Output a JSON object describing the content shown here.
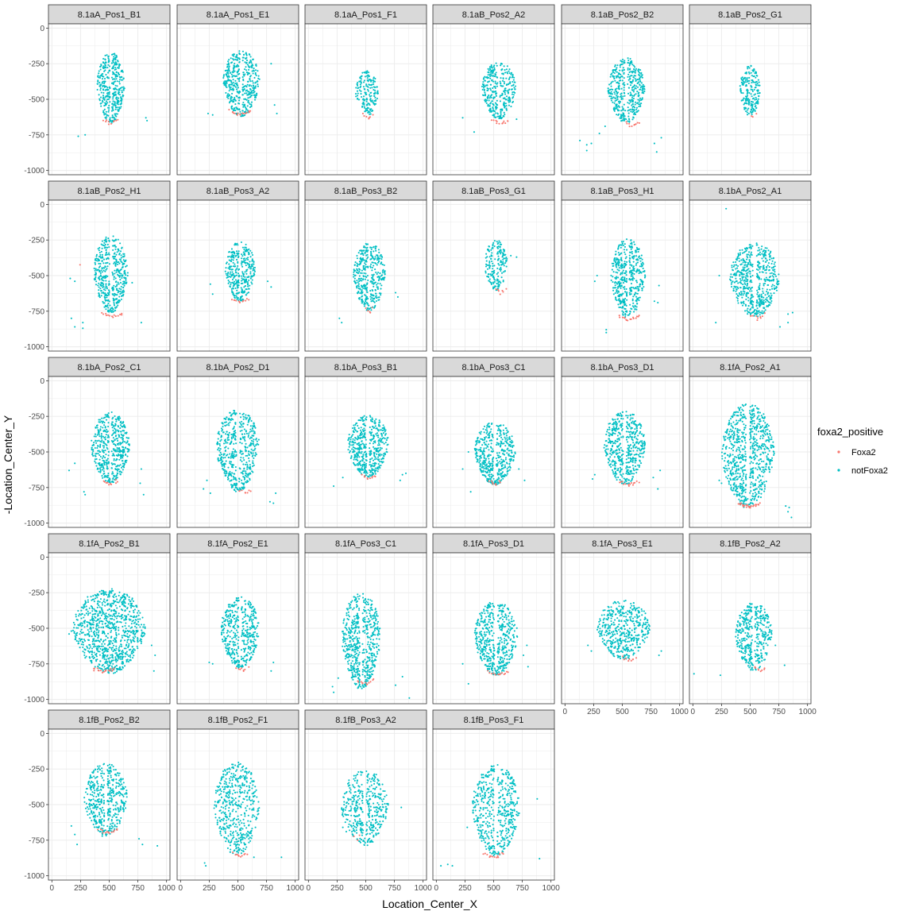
{
  "chart_data": {
    "type": "scatter",
    "facet_labels": [
      "8.1aA_Pos1_B1",
      "8.1aA_Pos1_E1",
      "8.1aA_Pos1_F1",
      "8.1aB_Pos2_A2",
      "8.1aB_Pos2_B2",
      "8.1aB_Pos2_G1",
      "8.1aB_Pos2_H1",
      "8.1aB_Pos3_A2",
      "8.1aB_Pos3_B2",
      "8.1aB_Pos3_G1",
      "8.1aB_Pos3_H1",
      "8.1bA_Pos2_A1",
      "8.1bA_Pos2_C1",
      "8.1bA_Pos2_D1",
      "8.1bA_Pos3_B1",
      "8.1bA_Pos3_C1",
      "8.1bA_Pos3_D1",
      "8.1fA_Pos2_A1",
      "8.1fA_Pos2_B1",
      "8.1fA_Pos2_E1",
      "8.1fA_Pos3_C1",
      "8.1fA_Pos3_D1",
      "8.1fA_Pos3_E1",
      "8.1fB_Pos2_A2",
      "8.1fB_Pos2_B2",
      "8.1fB_Pos2_F1",
      "8.1fB_Pos3_A2",
      "8.1fB_Pos3_F1"
    ],
    "xlabel": "Location_Center_X",
    "ylabel": "-Location_Center_Y",
    "xlim": [
      -30,
      1030
    ],
    "ylim": [
      -1030,
      30
    ],
    "x_ticks": [
      0,
      250,
      500,
      750,
      1000
    ],
    "x_tick_labels": [
      "0",
      "250",
      "500",
      "750",
      "1000"
    ],
    "y_ticks": [
      0,
      -250,
      -500,
      -750,
      -1000
    ],
    "y_tick_labels": [
      "0",
      "-250",
      "-500",
      "-750",
      "-1000"
    ],
    "grid": true,
    "legend": {
      "title": "foxa2_positive",
      "position": "right",
      "entries": [
        {
          "label": "Foxa2",
          "color": "#F8766D"
        },
        {
          "label": "notFoxa2",
          "color": "#00BFC4"
        }
      ]
    },
    "facets": [
      {
        "cx": 515,
        "cy": -420,
        "rx": 120,
        "ry": 250,
        "n": 380,
        "groove": true,
        "foxa2": [
          {
            "x": 510,
            "y": -660,
            "n": 10
          }
        ],
        "strays": [
          [
            230,
            -760
          ],
          [
            290,
            -750
          ],
          [
            830,
            -650
          ],
          [
            820,
            -630
          ],
          [
            550,
            -190
          ]
        ]
      },
      {
        "cx": 530,
        "cy": -390,
        "rx": 160,
        "ry": 230,
        "n": 420,
        "groove": true,
        "foxa2": [
          {
            "x": 520,
            "y": -600,
            "n": 16
          }
        ],
        "strays": [
          [
            240,
            -600
          ],
          [
            280,
            -610
          ],
          [
            820,
            -540
          ],
          [
            840,
            -600
          ],
          [
            790,
            -250
          ]
        ]
      },
      {
        "cx": 510,
        "cy": -460,
        "rx": 100,
        "ry": 160,
        "n": 170,
        "groove": false,
        "foxa2": [
          {
            "x": 520,
            "y": -620,
            "n": 7
          }
        ],
        "strays": []
      },
      {
        "cx": 545,
        "cy": -440,
        "rx": 150,
        "ry": 200,
        "n": 330,
        "groove": true,
        "foxa2": [
          {
            "x": 560,
            "y": -660,
            "n": 12
          }
        ],
        "strays": [
          [
            230,
            -630
          ],
          [
            330,
            -730
          ],
          [
            700,
            -640
          ]
        ]
      },
      {
        "cx": 535,
        "cy": -440,
        "rx": 160,
        "ry": 230,
        "n": 400,
        "groove": true,
        "foxa2": [
          {
            "x": 590,
            "y": -680,
            "n": 10
          }
        ],
        "strays": [
          [
            130,
            -790
          ],
          [
            190,
            -860
          ],
          [
            230,
            -810
          ],
          [
            190,
            -820
          ],
          [
            780,
            -810
          ],
          [
            800,
            -870
          ],
          [
            840,
            -770
          ],
          [
            300,
            -740
          ],
          [
            350,
            -690
          ]
        ]
      },
      {
        "cx": 500,
        "cy": -440,
        "rx": 90,
        "ry": 180,
        "n": 200,
        "groove": true,
        "foxa2": [
          {
            "x": 530,
            "y": -620,
            "n": 3
          }
        ],
        "strays": []
      },
      {
        "cx": 515,
        "cy": -490,
        "rx": 150,
        "ry": 270,
        "n": 430,
        "groove": true,
        "foxa2": [
          {
            "x": 530,
            "y": -780,
            "n": 14
          },
          {
            "x": 240,
            "y": -420,
            "n": 1
          }
        ],
        "strays": [
          [
            160,
            -520
          ],
          [
            200,
            -540
          ],
          [
            170,
            -800
          ],
          [
            200,
            -860
          ],
          [
            270,
            -830
          ],
          [
            270,
            -870
          ],
          [
            780,
            -830
          ],
          [
            700,
            -550
          ]
        ]
      },
      {
        "cx": 520,
        "cy": -470,
        "rx": 130,
        "ry": 210,
        "n": 330,
        "groove": true,
        "foxa2": [
          {
            "x": 520,
            "y": -680,
            "n": 12
          }
        ],
        "strays": [
          [
            260,
            -560
          ],
          [
            280,
            -630
          ],
          [
            790,
            -580
          ],
          [
            760,
            -540
          ]
        ]
      },
      {
        "cx": 530,
        "cy": -510,
        "rx": 140,
        "ry": 240,
        "n": 380,
        "groove": true,
        "foxa2": [
          {
            "x": 530,
            "y": -750,
            "n": 5
          }
        ],
        "strays": [
          [
            270,
            -800
          ],
          [
            290,
            -830
          ],
          [
            760,
            -620
          ],
          [
            780,
            -650
          ]
        ]
      },
      {
        "cx": 520,
        "cy": -430,
        "rx": 100,
        "ry": 180,
        "n": 180,
        "groove": true,
        "foxa2": [
          {
            "x": 560,
            "y": -610,
            "n": 7
          }
        ],
        "strays": [
          [
            700,
            -370
          ],
          [
            650,
            -360
          ]
        ]
      },
      {
        "cx": 550,
        "cy": -520,
        "rx": 150,
        "ry": 280,
        "n": 430,
        "groove": true,
        "foxa2": [
          {
            "x": 560,
            "y": -800,
            "n": 16
          }
        ],
        "strays": [
          [
            260,
            -540
          ],
          [
            280,
            -500
          ],
          [
            360,
            -880
          ],
          [
            360,
            -900
          ],
          [
            780,
            -680
          ],
          [
            810,
            -690
          ],
          [
            820,
            -570
          ]
        ]
      },
      {
        "cx": 540,
        "cy": -530,
        "rx": 220,
        "ry": 260,
        "n": 560,
        "groove": true,
        "foxa2": [
          {
            "x": 560,
            "y": -790,
            "n": 10
          }
        ],
        "strays": [
          [
            290,
            -30
          ],
          [
            200,
            -830
          ],
          [
            760,
            -860
          ],
          [
            830,
            -830
          ],
          [
            870,
            -760
          ],
          [
            830,
            -770
          ],
          [
            230,
            -500
          ]
        ]
      },
      {
        "cx": 510,
        "cy": -470,
        "rx": 170,
        "ry": 250,
        "n": 470,
        "groove": true,
        "foxa2": [
          {
            "x": 510,
            "y": -720,
            "n": 10
          }
        ],
        "strays": [
          [
            150,
            -630
          ],
          [
            200,
            -580
          ],
          [
            280,
            -780
          ],
          [
            290,
            -800
          ],
          [
            770,
            -720
          ],
          [
            800,
            -800
          ],
          [
            780,
            -620
          ]
        ]
      },
      {
        "cx": 500,
        "cy": -490,
        "rx": 190,
        "ry": 290,
        "n": 480,
        "groove": true,
        "foxa2": [
          {
            "x": 560,
            "y": -780,
            "n": 8
          }
        ],
        "strays": [
          [
            200,
            -760
          ],
          [
            260,
            -790
          ],
          [
            810,
            -860
          ],
          [
            780,
            -850
          ],
          [
            830,
            -790
          ],
          [
            230,
            -700
          ]
        ]
      },
      {
        "cx": 520,
        "cy": -460,
        "rx": 180,
        "ry": 220,
        "n": 460,
        "groove": true,
        "foxa2": [
          {
            "x": 530,
            "y": -680,
            "n": 10
          }
        ],
        "strays": [
          [
            220,
            -740
          ],
          [
            300,
            -680
          ],
          [
            820,
            -660
          ],
          [
            850,
            -650
          ],
          [
            800,
            -700
          ]
        ]
      },
      {
        "cx": 510,
        "cy": -510,
        "rx": 180,
        "ry": 220,
        "n": 430,
        "groove": true,
        "foxa2": [
          {
            "x": 510,
            "y": -720,
            "n": 8
          }
        ],
        "strays": [
          [
            230,
            -620
          ],
          [
            300,
            -780
          ],
          [
            770,
            -700
          ],
          [
            720,
            -620
          ],
          [
            280,
            -500
          ]
        ]
      },
      {
        "cx": 520,
        "cy": -470,
        "rx": 180,
        "ry": 260,
        "n": 480,
        "groove": true,
        "foxa2": [
          {
            "x": 560,
            "y": -720,
            "n": 14
          }
        ],
        "strays": [
          [
            240,
            -690
          ],
          [
            260,
            -660
          ],
          [
            810,
            -760
          ],
          [
            770,
            -680
          ],
          [
            830,
            -630
          ]
        ]
      },
      {
        "cx": 480,
        "cy": -530,
        "rx": 230,
        "ry": 370,
        "n": 720,
        "groove": true,
        "foxa2": [
          {
            "x": 490,
            "y": -880,
            "n": 24
          }
        ],
        "strays": [
          [
            230,
            -700
          ],
          [
            250,
            -720
          ],
          [
            830,
            -920
          ],
          [
            860,
            -960
          ],
          [
            840,
            -890
          ],
          [
            810,
            -880
          ]
        ]
      },
      {
        "cx": 500,
        "cy": -520,
        "rx": 320,
        "ry": 300,
        "n": 900,
        "groove": false,
        "foxa2": [
          {
            "x": 450,
            "y": -800,
            "n": 18
          }
        ],
        "strays": [
          [
            150,
            -540
          ],
          [
            170,
            -520
          ],
          [
            890,
            -800
          ],
          [
            900,
            -690
          ],
          [
            870,
            -620
          ]
        ]
      },
      {
        "cx": 520,
        "cy": -530,
        "rx": 170,
        "ry": 250,
        "n": 420,
        "groove": true,
        "foxa2": [
          {
            "x": 540,
            "y": -790,
            "n": 8
          }
        ],
        "strays": [
          [
            250,
            -740
          ],
          [
            280,
            -750
          ],
          [
            810,
            -740
          ],
          [
            790,
            -800
          ]
        ]
      },
      {
        "cx": 460,
        "cy": -590,
        "rx": 170,
        "ry": 340,
        "n": 560,
        "groove": true,
        "foxa2": [
          {
            "x": 500,
            "y": -880,
            "n": 12
          }
        ],
        "strays": [
          [
            210,
            -910
          ],
          [
            220,
            -950
          ],
          [
            260,
            -850
          ],
          [
            880,
            -990
          ],
          [
            760,
            -900
          ],
          [
            820,
            -840
          ]
        ]
      },
      {
        "cx": 520,
        "cy": -570,
        "rx": 190,
        "ry": 260,
        "n": 480,
        "groove": true,
        "foxa2": [
          {
            "x": 540,
            "y": -820,
            "n": 14
          }
        ],
        "strays": [
          [
            230,
            -750
          ],
          [
            280,
            -890
          ],
          [
            760,
            -690
          ],
          [
            790,
            -620
          ],
          [
            800,
            -770
          ]
        ]
      },
      {
        "cx": 510,
        "cy": -510,
        "rx": 230,
        "ry": 210,
        "n": 450,
        "groove": false,
        "foxa2": [
          {
            "x": 560,
            "y": -720,
            "n": 9
          }
        ],
        "strays": [
          [
            200,
            -620
          ],
          [
            230,
            -660
          ],
          [
            840,
            -660
          ],
          [
            820,
            -690
          ]
        ]
      },
      {
        "cx": 530,
        "cy": -560,
        "rx": 160,
        "ry": 240,
        "n": 390,
        "groove": true,
        "foxa2": [
          {
            "x": 580,
            "y": -790,
            "n": 8
          }
        ],
        "strays": [
          [
            10,
            -820
          ],
          [
            240,
            -830
          ],
          [
            800,
            -760
          ],
          [
            720,
            -620
          ]
        ]
      },
      {
        "cx": 470,
        "cy": -470,
        "rx": 190,
        "ry": 260,
        "n": 430,
        "groove": true,
        "foxa2": [
          {
            "x": 490,
            "y": -690,
            "n": 14
          }
        ],
        "strays": [
          [
            200,
            -710
          ],
          [
            220,
            -780
          ],
          [
            920,
            -790
          ],
          [
            790,
            -780
          ],
          [
            760,
            -740
          ],
          [
            170,
            -650
          ]
        ]
      },
      {
        "cx": 490,
        "cy": -530,
        "rx": 200,
        "ry": 330,
        "n": 470,
        "groove": false,
        "foxa2": [
          {
            "x": 520,
            "y": -860,
            "n": 10
          }
        ],
        "strays": [
          [
            210,
            -910
          ],
          [
            220,
            -930
          ],
          [
            880,
            -870
          ],
          [
            640,
            -870
          ]
        ]
      },
      {
        "cx": 490,
        "cy": -520,
        "rx": 210,
        "ry": 270,
        "n": 400,
        "groove": true,
        "foxa2": [
          {
            "x": 420,
            "y": -740,
            "n": 3
          }
        ],
        "strays": [
          [
            300,
            -660
          ],
          [
            330,
            -690
          ],
          [
            810,
            -520
          ],
          [
            300,
            -540
          ]
        ]
      },
      {
        "cx": 520,
        "cy": -540,
        "rx": 210,
        "ry": 320,
        "n": 500,
        "groove": true,
        "foxa2": [
          {
            "x": 500,
            "y": -860,
            "n": 14
          }
        ],
        "strays": [
          [
            40,
            -930
          ],
          [
            100,
            -920
          ],
          [
            140,
            -930
          ],
          [
            900,
            -880
          ],
          [
            880,
            -460
          ],
          [
            270,
            -660
          ]
        ]
      }
    ]
  }
}
